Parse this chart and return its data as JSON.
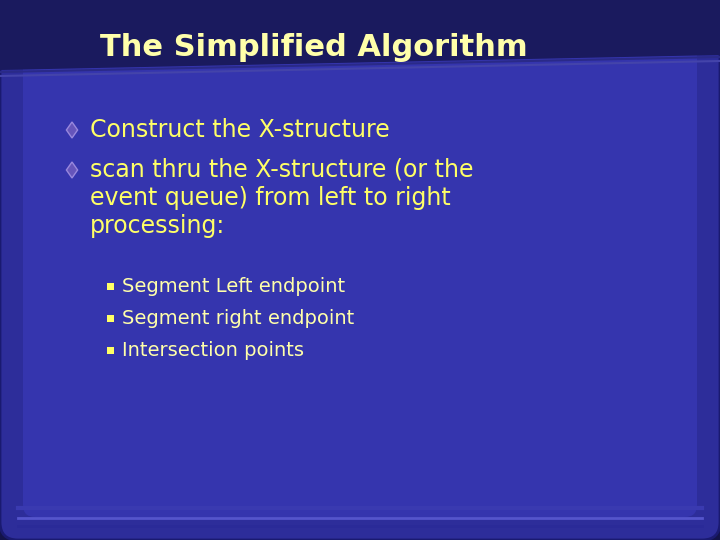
{
  "title": "The Simplified Algorithm",
  "title_color": "#FFFFAA",
  "title_fontsize": 22,
  "title_fontweight": "bold",
  "bg_dark": "#15154a",
  "bg_mid": "#22226a",
  "bg_main": "#3030a0",
  "bg_panel": "#3838b8",
  "bullet1_text": "Construct the X-structure",
  "bullet2_line1": "scan thru the X-structure (or the",
  "bullet2_line2": "event queue) from left to right",
  "bullet2_line3": "processing:",
  "bullet_fontsize": 17,
  "bullet_color_text": "#FFFF66",
  "bullet_diamond_color": "#6655bb",
  "bullet_diamond_edge": "#8877dd",
  "sub_bullets": [
    "Segment Left endpoint",
    "Segment right endpoint",
    "Intersection points"
  ],
  "sub_bullet_fontsize": 14,
  "sub_bullet_color": "#FFFFAA",
  "sub_bullet_sq_color": "#FFFF66"
}
